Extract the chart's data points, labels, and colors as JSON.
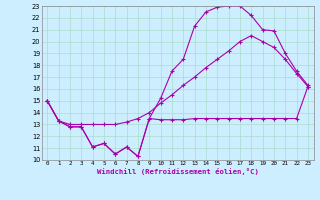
{
  "xlabel": "Windchill (Refroidissement éolien,°C)",
  "xlim": [
    -0.5,
    23.5
  ],
  "ylim": [
    10,
    23
  ],
  "xticks": [
    0,
    1,
    2,
    3,
    4,
    5,
    6,
    7,
    8,
    9,
    10,
    11,
    12,
    13,
    14,
    15,
    16,
    17,
    18,
    19,
    20,
    21,
    22,
    23
  ],
  "yticks": [
    10,
    11,
    12,
    13,
    14,
    15,
    16,
    17,
    18,
    19,
    20,
    21,
    22,
    23
  ],
  "color": "#aa00aa",
  "bg_color": "#cceeff",
  "grid_color": "#aaddcc",
  "curve1_x": [
    0,
    1,
    2,
    3,
    4,
    5,
    6,
    7,
    8,
    9,
    10,
    11,
    12,
    13,
    14,
    15,
    16,
    17,
    18,
    19,
    20,
    21,
    22,
    23
  ],
  "curve1_y": [
    15.0,
    13.3,
    12.8,
    12.8,
    11.1,
    11.4,
    10.5,
    11.1,
    10.3,
    13.5,
    13.4,
    13.4,
    13.4,
    13.5,
    13.5,
    13.5,
    13.5,
    13.5,
    13.5,
    13.5,
    13.5,
    13.5,
    13.5,
    16.2
  ],
  "curve2_x": [
    0,
    1,
    2,
    3,
    4,
    5,
    6,
    7,
    8,
    9,
    10,
    11,
    12,
    13,
    14,
    15,
    16,
    17,
    18,
    19,
    20,
    21,
    22,
    23
  ],
  "curve2_y": [
    15.0,
    13.3,
    13.0,
    13.0,
    13.0,
    13.0,
    13.0,
    13.2,
    13.5,
    14.0,
    14.8,
    15.5,
    16.3,
    17.0,
    17.8,
    18.5,
    19.2,
    20.0,
    20.5,
    20.0,
    19.5,
    18.5,
    17.3,
    16.2
  ],
  "curve3_x": [
    0,
    1,
    2,
    3,
    4,
    5,
    6,
    7,
    8,
    9,
    10,
    11,
    12,
    13,
    14,
    15,
    16,
    17,
    18,
    19,
    20,
    21,
    22,
    23
  ],
  "curve3_y": [
    15.0,
    13.3,
    12.8,
    12.8,
    11.1,
    11.4,
    10.5,
    11.1,
    10.3,
    13.5,
    15.2,
    17.5,
    18.5,
    21.3,
    22.5,
    22.9,
    23.0,
    23.0,
    22.2,
    21.0,
    20.9,
    19.0,
    17.5,
    16.3
  ]
}
